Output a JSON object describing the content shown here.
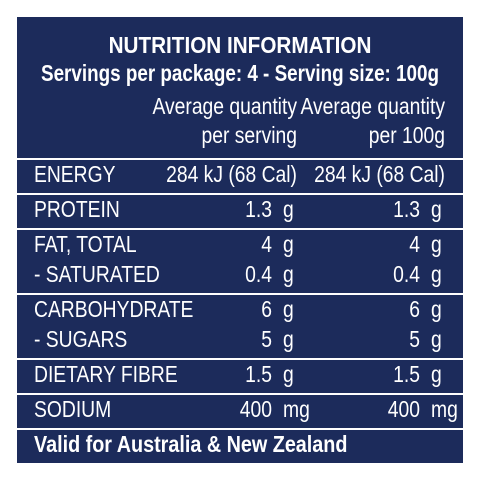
{
  "title": "NUTRITION INFORMATION",
  "subtitle": "Servings per package: 4 - Serving size: 100g",
  "columns": [
    [
      "Average quantity",
      "per serving"
    ],
    [
      "Average quantity",
      "per 100g"
    ]
  ],
  "groups": [
    [
      {
        "name": "ENERGY",
        "serving": "284 kJ (68 Cal)",
        "per100": "284 kJ (68 Cal)"
      }
    ],
    [
      {
        "name": "PROTEIN",
        "serving": "1.3",
        "serving_unit": "g",
        "per100": "1.3",
        "per100_unit": "g"
      }
    ],
    [
      {
        "name": "FAT, TOTAL",
        "serving": "4",
        "serving_unit": "g",
        "per100": "4",
        "per100_unit": "g"
      },
      {
        "name": "- SATURATED",
        "serving": "0.4",
        "serving_unit": "g",
        "per100": "0.4",
        "per100_unit": "g"
      }
    ],
    [
      {
        "name": "CARBOHYDRATE",
        "serving": "6",
        "serving_unit": "g",
        "per100": "6",
        "per100_unit": "g"
      },
      {
        "name": "- SUGARS",
        "serving": "5",
        "serving_unit": "g",
        "per100": "5",
        "per100_unit": "g"
      }
    ],
    [
      {
        "name": "DIETARY FIBRE",
        "serving": "1.5",
        "serving_unit": "g",
        "per100": "1.5",
        "per100_unit": "g"
      }
    ],
    [
      {
        "name": "SODIUM",
        "serving": "400",
        "serving_unit": "mg",
        "per100": "400",
        "per100_unit": "mg"
      }
    ]
  ],
  "footer": "Valid for Australia & New Zealand"
}
